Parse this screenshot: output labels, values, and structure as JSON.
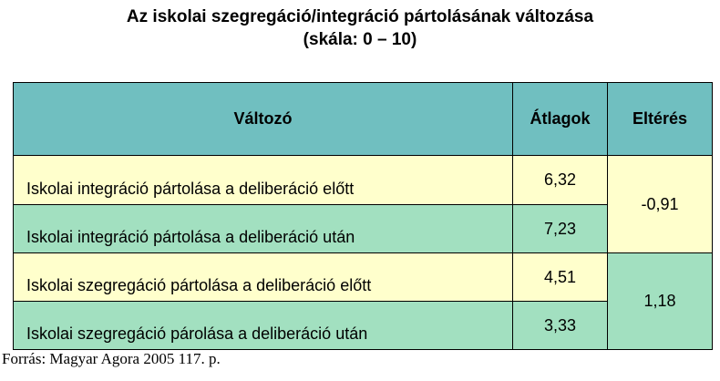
{
  "title": "Az iskolai szegregáció/integráció pártolásának változása",
  "subtitle": "(skála: 0 – 10)",
  "table": {
    "header": [
      "Változó",
      "Átlagok",
      "Eltérés"
    ],
    "rows": [
      [
        "Iskolai integráció pártolása a deliberáció előtt",
        "6,32",
        "-0,91"
      ],
      [
        "Iskolai integráció pártolása a deliberáció után",
        "7,23"
      ],
      [
        "Iskolai szegregáció pártolása a deliberáció előtt",
        "4,51",
        "1,18"
      ],
      [
        "Iskolai szegregáció párolása a deliberáció után",
        "3,33"
      ]
    ]
  },
  "source": "Forrás: Magyar Agora 2005 117. p."
}
